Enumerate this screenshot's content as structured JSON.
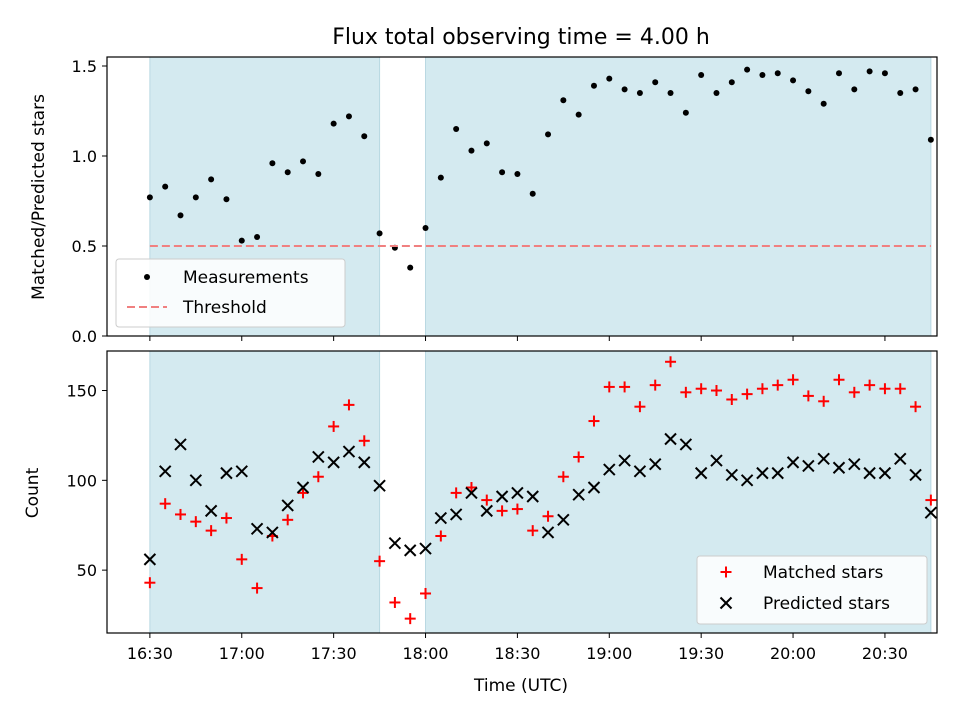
{
  "title": "Flux total observing time = 4.00 h",
  "chart_data": [
    {
      "type": "scatter",
      "ylabel": "Matched/Predicted stars",
      "ylim": [
        0.0,
        1.55
      ],
      "yticks": [
        0.0,
        0.5,
        1.0,
        1.5
      ],
      "ytick_labels": [
        "0.0",
        "0.5",
        "1.0",
        "1.5"
      ],
      "grid": false,
      "legend_position": "lower-left",
      "series": [
        {
          "name": "Measurements",
          "color": "#000000",
          "marker": "dot",
          "points": [
            [
              "16:30",
              0.77
            ],
            [
              "16:35",
              0.83
            ],
            [
              "16:40",
              0.67
            ],
            [
              "16:45",
              0.77
            ],
            [
              "16:50",
              0.87
            ],
            [
              "16:55",
              0.76
            ],
            [
              "17:00",
              0.53
            ],
            [
              "17:05",
              0.55
            ],
            [
              "17:10",
              0.96
            ],
            [
              "17:15",
              0.91
            ],
            [
              "17:20",
              0.97
            ],
            [
              "17:25",
              0.9
            ],
            [
              "17:30",
              1.18
            ],
            [
              "17:35",
              1.22
            ],
            [
              "17:40",
              1.11
            ],
            [
              "17:45",
              0.57
            ],
            [
              "17:50",
              0.49
            ],
            [
              "17:55",
              0.38
            ],
            [
              "18:00",
              0.6
            ],
            [
              "18:05",
              0.88
            ],
            [
              "18:10",
              1.15
            ],
            [
              "18:15",
              1.03
            ],
            [
              "18:20",
              1.07
            ],
            [
              "18:25",
              0.91
            ],
            [
              "18:30",
              0.9
            ],
            [
              "18:35",
              0.79
            ],
            [
              "18:40",
              1.12
            ],
            [
              "18:45",
              1.31
            ],
            [
              "18:50",
              1.23
            ],
            [
              "18:55",
              1.39
            ],
            [
              "19:00",
              1.43
            ],
            [
              "19:05",
              1.37
            ],
            [
              "19:10",
              1.35
            ],
            [
              "19:15",
              1.41
            ],
            [
              "19:20",
              1.35
            ],
            [
              "19:25",
              1.24
            ],
            [
              "19:30",
              1.45
            ],
            [
              "19:35",
              1.35
            ],
            [
              "19:40",
              1.41
            ],
            [
              "19:45",
              1.48
            ],
            [
              "19:50",
              1.45
            ],
            [
              "19:55",
              1.46
            ],
            [
              "20:00",
              1.42
            ],
            [
              "20:05",
              1.36
            ],
            [
              "20:10",
              1.29
            ],
            [
              "20:15",
              1.46
            ],
            [
              "20:20",
              1.37
            ],
            [
              "20:25",
              1.47
            ],
            [
              "20:30",
              1.46
            ],
            [
              "20:35",
              1.35
            ],
            [
              "20:40",
              1.37
            ],
            [
              "20:45",
              1.09
            ]
          ]
        },
        {
          "name": "Threshold",
          "color": "#f08080",
          "style": "dashed",
          "y": 0.5,
          "x_range": [
            "16:30",
            "20:45"
          ]
        }
      ],
      "shaded_spans": [
        [
          "16:30",
          "17:45"
        ],
        [
          "18:00",
          "20:45"
        ]
      ]
    },
    {
      "type": "scatter",
      "xlabel": "Time (UTC)",
      "ylabel": "Count",
      "ylim": [
        15,
        172
      ],
      "yticks": [
        50,
        100,
        150
      ],
      "ytick_labels": [
        "50",
        "100",
        "150"
      ],
      "xticks": [
        "16:30",
        "17:00",
        "17:30",
        "18:00",
        "18:30",
        "19:00",
        "19:30",
        "20:00",
        "20:30"
      ],
      "xlim": [
        "16:16",
        "20:47"
      ],
      "grid": false,
      "legend_position": "lower-right",
      "series": [
        {
          "name": "Matched stars",
          "color": "#ff0000",
          "marker": "plus",
          "points": [
            [
              "16:30",
              43
            ],
            [
              "16:35",
              87
            ],
            [
              "16:40",
              81
            ],
            [
              "16:45",
              77
            ],
            [
              "16:50",
              72
            ],
            [
              "16:55",
              79
            ],
            [
              "17:00",
              56
            ],
            [
              "17:05",
              40
            ],
            [
              "17:10",
              69
            ],
            [
              "17:15",
              78
            ],
            [
              "17:20",
              93
            ],
            [
              "17:25",
              102
            ],
            [
              "17:30",
              130
            ],
            [
              "17:35",
              142
            ],
            [
              "17:40",
              122
            ],
            [
              "17:45",
              55
            ],
            [
              "17:50",
              32
            ],
            [
              "17:55",
              23
            ],
            [
              "18:00",
              37
            ],
            [
              "18:05",
              69
            ],
            [
              "18:10",
              93
            ],
            [
              "18:15",
              96
            ],
            [
              "18:20",
              89
            ],
            [
              "18:25",
              83
            ],
            [
              "18:30",
              84
            ],
            [
              "18:35",
              72
            ],
            [
              "18:40",
              80
            ],
            [
              "18:45",
              102
            ],
            [
              "18:50",
              113
            ],
            [
              "18:55",
              133
            ],
            [
              "19:00",
              152
            ],
            [
              "19:05",
              152
            ],
            [
              "19:10",
              141
            ],
            [
              "19:15",
              153
            ],
            [
              "19:20",
              166
            ],
            [
              "19:25",
              149
            ],
            [
              "19:30",
              151
            ],
            [
              "19:35",
              150
            ],
            [
              "19:40",
              145
            ],
            [
              "19:45",
              148
            ],
            [
              "19:50",
              151
            ],
            [
              "19:55",
              153
            ],
            [
              "20:00",
              156
            ],
            [
              "20:05",
              147
            ],
            [
              "20:10",
              144
            ],
            [
              "20:15",
              156
            ],
            [
              "20:20",
              149
            ],
            [
              "20:25",
              153
            ],
            [
              "20:30",
              151
            ],
            [
              "20:35",
              151
            ],
            [
              "20:40",
              141
            ],
            [
              "20:45",
              89
            ]
          ]
        },
        {
          "name": "Predicted stars",
          "color": "#000000",
          "marker": "x",
          "points": [
            [
              "16:30",
              56
            ],
            [
              "16:35",
              105
            ],
            [
              "16:40",
              120
            ],
            [
              "16:45",
              100
            ],
            [
              "16:50",
              83
            ],
            [
              "16:55",
              104
            ],
            [
              "17:00",
              105
            ],
            [
              "17:05",
              73
            ],
            [
              "17:10",
              71
            ],
            [
              "17:15",
              86
            ],
            [
              "17:20",
              96
            ],
            [
              "17:25",
              113
            ],
            [
              "17:30",
              110
            ],
            [
              "17:35",
              116
            ],
            [
              "17:40",
              110
            ],
            [
              "17:45",
              97
            ],
            [
              "17:50",
              65
            ],
            [
              "17:55",
              61
            ],
            [
              "18:00",
              62
            ],
            [
              "18:05",
              79
            ],
            [
              "18:10",
              81
            ],
            [
              "18:15",
              93
            ],
            [
              "18:20",
              83
            ],
            [
              "18:25",
              91
            ],
            [
              "18:30",
              93
            ],
            [
              "18:35",
              91
            ],
            [
              "18:40",
              71
            ],
            [
              "18:45",
              78
            ],
            [
              "18:50",
              92
            ],
            [
              "18:55",
              96
            ],
            [
              "19:00",
              106
            ],
            [
              "19:05",
              111
            ],
            [
              "19:10",
              105
            ],
            [
              "19:15",
              109
            ],
            [
              "19:20",
              123
            ],
            [
              "19:25",
              120
            ],
            [
              "19:30",
              104
            ],
            [
              "19:35",
              111
            ],
            [
              "19:40",
              103
            ],
            [
              "19:45",
              100
            ],
            [
              "19:50",
              104
            ],
            [
              "19:55",
              104
            ],
            [
              "20:00",
              110
            ],
            [
              "20:05",
              108
            ],
            [
              "20:10",
              112
            ],
            [
              "20:15",
              107
            ],
            [
              "20:20",
              109
            ],
            [
              "20:25",
              104
            ],
            [
              "20:30",
              104
            ],
            [
              "20:35",
              112
            ],
            [
              "20:40",
              103
            ],
            [
              "20:45",
              82
            ]
          ]
        }
      ],
      "shaded_spans": [
        [
          "16:30",
          "17:45"
        ],
        [
          "18:00",
          "20:45"
        ]
      ]
    }
  ],
  "colors": {
    "shade": "#d4eaf0",
    "shade_edge": "#b8d8e2"
  }
}
